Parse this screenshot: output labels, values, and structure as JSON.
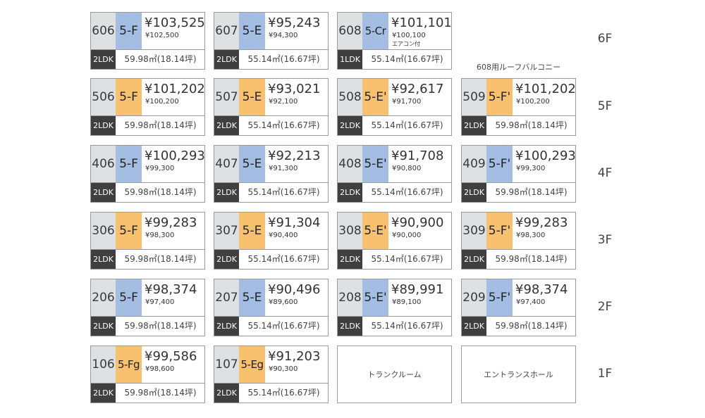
{
  "units": {
    "u606": {
      "room": "606",
      "type": "5-F",
      "price": "¥103,525",
      "price_sub": "¥102,500",
      "layout": "2LDK",
      "area": "59.98㎡(18.14坪)"
    },
    "u607": {
      "room": "607",
      "type": "5-E",
      "price": "¥95,243",
      "price_sub": "¥94,300",
      "layout": "2LDK",
      "area": "55.14㎡(16.67坪)"
    },
    "u608": {
      "room": "608",
      "type": "5-Cr",
      "price": "¥101,101",
      "price_sub": "¥100,100",
      "note": "エアコン付",
      "layout": "1LDK",
      "area": "55.14㎡(16.67坪)"
    },
    "u506": {
      "room": "506",
      "type": "5-F",
      "price": "¥101,202",
      "price_sub": "¥100,200",
      "layout": "2LDK",
      "area": "59.98㎡(18.14坪)"
    },
    "u507": {
      "room": "507",
      "type": "5-E",
      "price": "¥93,021",
      "price_sub": "¥92,100",
      "layout": "2LDK",
      "area": "55.14㎡(16.67坪)"
    },
    "u508": {
      "room": "508",
      "type": "5-E'",
      "price": "¥92,617",
      "price_sub": "¥91,700",
      "layout": "2LDK",
      "area": "55.14㎡(16.67坪)"
    },
    "u509": {
      "room": "509",
      "type": "5-F'",
      "price": "¥101,202",
      "price_sub": "¥100,200",
      "layout": "2LDK",
      "area": "59.98㎡(18.14坪)"
    },
    "u406": {
      "room": "406",
      "type": "5-F",
      "price": "¥100,293",
      "price_sub": "¥99,300",
      "layout": "2LDK",
      "area": "59.98㎡(18.14坪)"
    },
    "u407": {
      "room": "407",
      "type": "5-E",
      "price": "¥92,213",
      "price_sub": "¥91,300",
      "layout": "2LDK",
      "area": "55.14㎡(16.67坪)"
    },
    "u408": {
      "room": "408",
      "type": "5-E'",
      "price": "¥91,708",
      "price_sub": "¥90,800",
      "layout": "2LDK",
      "area": "55.14㎡(16.67坪)"
    },
    "u409": {
      "room": "409",
      "type": "5-F'",
      "price": "¥100,293",
      "price_sub": "¥99,300",
      "layout": "2LDK",
      "area": "59.98㎡(18.14坪)"
    },
    "u306": {
      "room": "306",
      "type": "5-F",
      "price": "¥99,283",
      "price_sub": "¥98,300",
      "layout": "2LDK",
      "area": "59.98㎡(18.14坪)"
    },
    "u307": {
      "room": "307",
      "type": "5-E",
      "price": "¥91,304",
      "price_sub": "¥90,400",
      "layout": "2LDK",
      "area": "55.14㎡(16.67坪)"
    },
    "u308": {
      "room": "308",
      "type": "5-E'",
      "price": "¥90,900",
      "price_sub": "¥90,000",
      "layout": "2LDK",
      "area": "55.14㎡(16.67坪)"
    },
    "u309": {
      "room": "309",
      "type": "5-F'",
      "price": "¥99,283",
      "price_sub": "¥98,300",
      "layout": "2LDK",
      "area": "59.98㎡(18.14坪)"
    },
    "u206": {
      "room": "206",
      "type": "5-F",
      "price": "¥98,374",
      "price_sub": "¥97,400",
      "layout": "2LDK",
      "area": "59.98㎡(18.14坪)"
    },
    "u207": {
      "room": "207",
      "type": "5-E",
      "price": "¥90,496",
      "price_sub": "¥89,600",
      "layout": "2LDK",
      "area": "55.14㎡(16.67坪)"
    },
    "u208": {
      "room": "208",
      "type": "5-E'",
      "price": "¥89,991",
      "price_sub": "¥89,100",
      "layout": "2LDK",
      "area": "55.14㎡(16.67坪)"
    },
    "u209": {
      "room": "209",
      "type": "5-F'",
      "price": "¥98,374",
      "price_sub": "¥97,400",
      "layout": "2LDK",
      "area": "59.98㎡(18.14坪)"
    },
    "u106": {
      "room": "106",
      "type": "5-Fg",
      "price": "¥99,586",
      "price_sub": "¥98,600",
      "layout": "2LDK",
      "area": "59.98㎡(18.14坪)"
    },
    "u107": {
      "room": "107",
      "type": "5-Eg",
      "price": "¥91,203",
      "price_sub": "¥90,300",
      "layout": "2LDK",
      "area": "55.14㎡(16.67坪)"
    }
  },
  "facilities": {
    "trunk_room": "トランクルーム",
    "entrance_hall": "エントランスホール"
  },
  "balcony_note": "608用ルーフバルコニー",
  "floors": {
    "f6": "6F",
    "f5": "5F",
    "f4": "4F",
    "f3": "3F",
    "f2": "2F",
    "f1": "1F"
  },
  "colors": {
    "type_blue": "#a4bde3",
    "type_orange": "#f8c16f",
    "room_gray": "#dfe0e1",
    "layout_dark": "#3f3f3f"
  }
}
